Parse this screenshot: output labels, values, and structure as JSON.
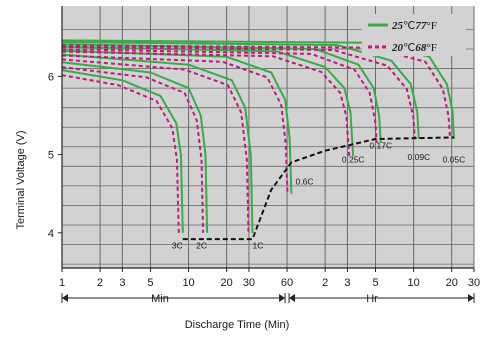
{
  "chart_data": {
    "type": "line",
    "ylabel": "Terminal Voltage (V)",
    "xlabel": "Discharge Time (Min)",
    "x_scale": "log",
    "ylim": [
      3.55,
      6.9
    ],
    "y_ticks": [
      "4",
      "5",
      "6"
    ],
    "y_values": [
      4,
      5,
      6
    ],
    "x_tick_labels": [
      "1",
      "2",
      "3",
      "5",
      "10",
      "20",
      "30",
      "60",
      "2",
      "3",
      "5",
      "10",
      "20",
      "30"
    ],
    "x_tick_values_min": [
      1,
      2,
      3,
      5,
      10,
      20,
      30,
      60,
      120,
      180,
      300,
      600,
      1200,
      1800
    ],
    "x_unit_labels": {
      "min": "Min",
      "hr": "Hr"
    },
    "grid": true,
    "legend_position": "top-right",
    "legend": [
      {
        "text_a": "25",
        "text_b": "℃",
        "text_c": "77",
        "text_d": "°F",
        "color": "#3aaa4a",
        "style": "solid"
      },
      {
        "text_a": "20",
        "text_b": "℃",
        "text_c": "68",
        "text_d": "°F",
        "color": "#c01a7a",
        "style": "dashed"
      }
    ],
    "colors": {
      "solid": "#3aaa4a",
      "dashed": "#c01a7a",
      "endpoint": "#111111",
      "plot_bg": "#d2d2d2",
      "grid": "#6a6a6a"
    },
    "series": [
      {
        "name": "3C",
        "end_min": 9,
        "points": [
          [
            1,
            6.08
          ],
          [
            3,
            5.95
          ],
          [
            6,
            5.75
          ],
          [
            8,
            5.4
          ],
          [
            8.7,
            5.0
          ],
          [
            9,
            4.0
          ]
        ]
      },
      {
        "name": "2C",
        "end_min": 14,
        "points": [
          [
            1,
            6.18
          ],
          [
            5,
            6.05
          ],
          [
            10,
            5.85
          ],
          [
            12.5,
            5.5
          ],
          [
            13.6,
            5.0
          ],
          [
            14,
            4.0
          ]
        ]
      },
      {
        "name": "1C",
        "end_min": 32,
        "points": [
          [
            1,
            6.28
          ],
          [
            10,
            6.15
          ],
          [
            22,
            5.95
          ],
          [
            28,
            5.6
          ],
          [
            31,
            5.0
          ],
          [
            32,
            4.0
          ]
        ]
      },
      {
        "name": "0.6C",
        "end_min": 65,
        "points": [
          [
            1,
            6.33
          ],
          [
            20,
            6.25
          ],
          [
            45,
            6.05
          ],
          [
            58,
            5.7
          ],
          [
            63,
            5.2
          ],
          [
            65,
            4.5
          ]
        ]
      },
      {
        "name": "0.25C",
        "end_min": 200,
        "points": [
          [
            1,
            6.38
          ],
          [
            50,
            6.32
          ],
          [
            120,
            6.12
          ],
          [
            170,
            5.85
          ],
          [
            190,
            5.55
          ],
          [
            200,
            4.98
          ]
        ]
      },
      {
        "name": "0.17C",
        "end_min": 330,
        "points": [
          [
            1,
            6.41
          ],
          [
            100,
            6.35
          ],
          [
            220,
            6.15
          ],
          [
            290,
            5.85
          ],
          [
            320,
            5.5
          ],
          [
            330,
            5.15
          ]
        ]
      },
      {
        "name": "0.09C",
        "end_min": 660,
        "points": [
          [
            1,
            6.44
          ],
          [
            150,
            6.4
          ],
          [
            400,
            6.2
          ],
          [
            570,
            5.9
          ],
          [
            640,
            5.55
          ],
          [
            660,
            5.2
          ]
        ]
      },
      {
        "name": "0.05C",
        "end_min": 1250,
        "points": [
          [
            1,
            6.46
          ],
          [
            300,
            6.43
          ],
          [
            800,
            6.25
          ],
          [
            1100,
            5.9
          ],
          [
            1220,
            5.55
          ],
          [
            1250,
            5.2
          ]
        ]
      }
    ],
    "endpoint_curve": [
      [
        9,
        3.92
      ],
      [
        32,
        3.92
      ],
      [
        45,
        4.55
      ],
      [
        65,
        4.9
      ],
      [
        120,
        5.05
      ],
      [
        300,
        5.2
      ],
      [
        1250,
        5.22
      ]
    ]
  }
}
